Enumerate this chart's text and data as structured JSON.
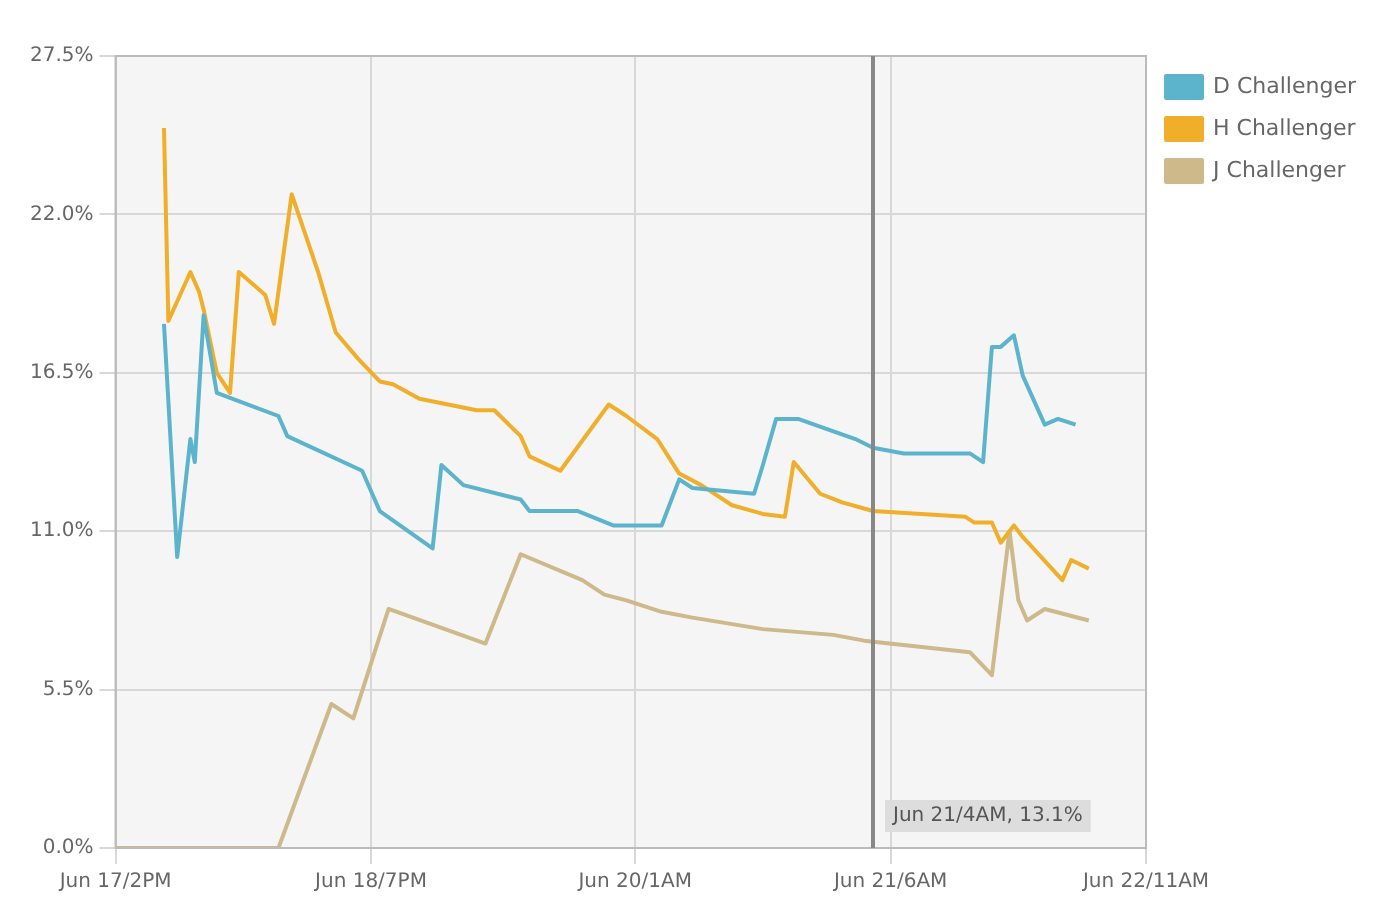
{
  "chart_data": {
    "type": "line",
    "xlim": [
      "--06-17T14:00",
      "--06-22T11:00"
    ],
    "xticks": [
      {
        "value": "--06-17T14:00",
        "label": "Jun 17/2PM"
      },
      {
        "value": "--06-18T19:00",
        "label": "Jun 18/7PM"
      },
      {
        "value": "--06-20T01:00",
        "label": "Jun 20/1AM"
      },
      {
        "value": "--06-21T06:00",
        "label": "Jun 21/6AM"
      },
      {
        "value": "--06-22T11:00",
        "label": "Jun 22/11AM"
      }
    ],
    "ylim": [
      0,
      27.5
    ],
    "yticks": [
      {
        "value": 0,
        "label": "0.0%"
      },
      {
        "value": 5.5,
        "label": "5.5%"
      },
      {
        "value": 11,
        "label": "11.0%"
      },
      {
        "value": 16.5,
        "label": "16.5%"
      },
      {
        "value": 22,
        "label": "22.0%"
      },
      {
        "value": 27.5,
        "label": "27.5%"
      }
    ],
    "grid": true,
    "legend": "top right",
    "marker": "none",
    "line_style": "solid",
    "ref_lines": [
      {
        "axis": "x",
        "value": "--06-21T04:00",
        "label": "Jun 21/4AM, 13.1%",
        "color": "#888888"
      }
    ],
    "series": [
      {
        "name": "D Challenger",
        "color": "#5bb4cc",
        "x": [
          "--06-17T19:30",
          "--06-17T21:00",
          "--06-17T22:30",
          "--06-17T23:00",
          "--06-18T00:00",
          "--06-18T01:30",
          "--06-18T08:30",
          "--06-18T09:30",
          "--06-18T18:00",
          "--06-18T20:00",
          "--06-19T02:00",
          "--06-19T03:00",
          "--06-19T05:30",
          "--06-19T12:00",
          "--06-19T13:00",
          "--06-19T18:30",
          "--06-19T22:30",
          "--06-20T04:00",
          "--06-20T06:00",
          "--06-20T07:30",
          "--06-20T14:30",
          "--06-20T15:30",
          "--06-20T17:00",
          "--06-20T19:30",
          "--06-21T02:00",
          "--06-21T04:00",
          "--06-21T07:30",
          "--06-21T15:00",
          "--06-21T16:30",
          "--06-21T17:30",
          "--06-21T18:30",
          "--06-21T20:00",
          "--06-21T21:00",
          "--06-21T23:30",
          "--06-22T01:00",
          "--06-22T03:00"
        ],
        "values": [
          18.2,
          10.1,
          14.2,
          13.4,
          18.5,
          15.8,
          15.0,
          14.3,
          13.1,
          11.7,
          10.4,
          13.3,
          12.6,
          12.1,
          11.7,
          11.7,
          11.2,
          11.2,
          12.8,
          12.5,
          12.3,
          13.3,
          14.9,
          14.9,
          14.2,
          13.9,
          13.7,
          13.7,
          13.4,
          17.4,
          17.4,
          17.8,
          16.4,
          14.7,
          14.9,
          14.7
        ]
      },
      {
        "name": "H Challenger",
        "color": "#f0ae2a",
        "x": [
          "--06-17T19:30",
          "--06-17T20:00",
          "--06-17T22:30",
          "--06-17T23:30",
          "--06-18T00:00",
          "--06-18T01:30",
          "--06-18T03:00",
          "--06-18T04:00",
          "--06-18T07:00",
          "--06-18T08:00",
          "--06-18T10:00",
          "--06-18T13:00",
          "--06-18T15:00",
          "--06-18T17:30",
          "--06-18T20:00",
          "--06-18T21:30",
          "--06-19T00:30",
          "--06-19T07:00",
          "--06-19T09:00",
          "--06-19T12:00",
          "--06-19T13:00",
          "--06-19T16:30",
          "--06-19T22:00",
          "--06-20T00:00",
          "--06-20T03:30",
          "--06-20T06:00",
          "--06-20T08:30",
          "--06-20T12:00",
          "--06-20T15:30",
          "--06-20T18:00",
          "--06-20T19:00",
          "--06-20T22:00",
          "--06-21T00:30",
          "--06-21T04:00",
          "--06-21T14:30",
          "--06-21T15:30",
          "--06-21T17:30",
          "--06-21T18:30",
          "--06-21T20:00",
          "--06-21T21:00",
          "--06-22T01:30",
          "--06-22T02:30",
          "--06-22T04:30"
        ],
        "values": [
          25.0,
          18.3,
          20.0,
          19.3,
          18.7,
          16.5,
          15.8,
          20.0,
          19.2,
          18.2,
          22.7,
          20.0,
          17.9,
          17.0,
          16.2,
          16.1,
          15.6,
          15.2,
          15.2,
          14.3,
          13.6,
          13.1,
          15.4,
          15.0,
          14.2,
          13.0,
          12.6,
          11.9,
          11.6,
          11.5,
          13.4,
          12.3,
          12.0,
          11.7,
          11.5,
          11.3,
          11.3,
          10.6,
          11.2,
          10.8,
          9.3,
          10.0,
          9.7
        ]
      },
      {
        "name": "J Challenger",
        "color": "#cdb98a",
        "x": [
          "--06-17T14:00",
          "--06-18T08:30",
          "--06-18T14:30",
          "--06-18T17:00",
          "--06-18T21:00",
          "--06-19T08:00",
          "--06-19T12:00",
          "--06-19T19:00",
          "--06-19T21:30",
          "--06-20T00:00",
          "--06-20T04:00",
          "--06-20T07:30",
          "--06-20T15:30",
          "--06-20T23:30",
          "--06-21T03:00",
          "--06-21T15:00",
          "--06-21T17:30",
          "--06-21T19:30",
          "--06-21T20:30",
          "--06-21T21:30",
          "--06-21T23:30",
          "--06-22T04:30"
        ],
        "values": [
          0,
          0,
          5.0,
          4.5,
          8.3,
          7.1,
          10.2,
          9.3,
          8.8,
          8.6,
          8.2,
          8.0,
          7.6,
          7.4,
          7.2,
          6.8,
          6.0,
          11.0,
          8.6,
          7.9,
          8.3,
          7.9
        ]
      }
    ]
  }
}
